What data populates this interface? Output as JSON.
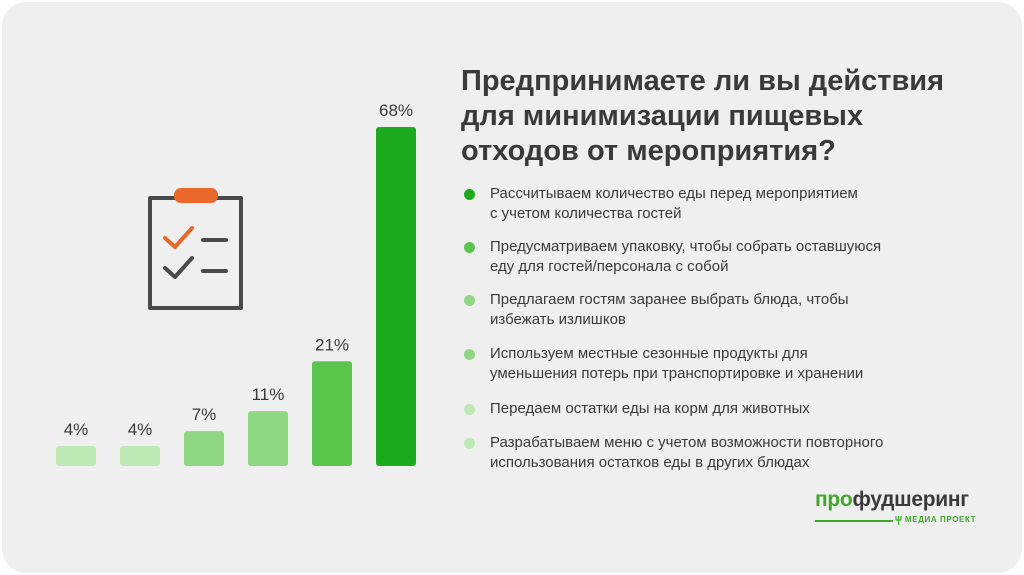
{
  "title_lines": [
    "Предпринимаете ли вы действия",
    "для минимизации пищевых",
    "отходов от мероприятия?"
  ],
  "chart_data": {
    "type": "bar",
    "title": "Предпринимаете ли вы действия для минимизации пищевых отходов от мероприятия?",
    "categories": [
      "Разрабатываем меню с учетом возможности повторного использования остатков еды в других блюдах",
      "Передаем остатки еды на корм для животных",
      "Используем местные сезонные продукты для уменьшения потерь при транспортировке и хранении",
      "Предлагаем гостям заранее выбрать блюда, чтобы избежать излишков",
      "Предусматриваем упаковку, чтобы собрать оставшуюся еду для гостей/персонала с собой",
      "Рассчитываем количество еды перед мероприятием с учетом количества гостей"
    ],
    "values": [
      4,
      4,
      7,
      11,
      21,
      68
    ],
    "value_labels": [
      "4%",
      "4%",
      "7%",
      "11%",
      "21%",
      "68%"
    ],
    "colors": [
      "#bde9b5",
      "#bde9b5",
      "#8fd782",
      "#8fd782",
      "#5cc54e",
      "#1eaa1e"
    ],
    "ylim": [
      0,
      68
    ],
    "xlabel": "",
    "ylabel": "",
    "grid": false,
    "legend_position": "right"
  },
  "legend": [
    {
      "lines": [
        "Рассчитываем количество еды перед мероприятием",
        "с учетом количества гостей"
      ],
      "color": "#1eaa1e"
    },
    {
      "lines": [
        "Предусматриваем упаковку, чтобы собрать оставшуюся",
        "еду для гостей/персонала с собой"
      ],
      "color": "#5cc54e"
    },
    {
      "lines": [
        "Предлагаем гостям заранее выбрать блюда, чтобы",
        "избежать излишков"
      ],
      "color": "#8fd782"
    },
    {
      "lines": [
        "Используем местные сезонные продукты для",
        "уменьшения потерь при транспортировке и хранении"
      ],
      "color": "#8fd782"
    },
    {
      "lines": [
        "Передаем остатки еды на корм для животных"
      ],
      "color": "#bde9b5"
    },
    {
      "lines": [
        "Разрабатываем меню с учетом возможности повторного",
        "использования остатков еды в других блюдах"
      ],
      "color": "#bde9b5"
    }
  ],
  "brand": {
    "name_accent": "про",
    "name_rest": "фудшеринг",
    "subtitle": "МЕДИА ПРОЕКТ"
  },
  "icons": {
    "clipboard": "clipboard-checklist-icon",
    "fork": "fork-icon"
  }
}
